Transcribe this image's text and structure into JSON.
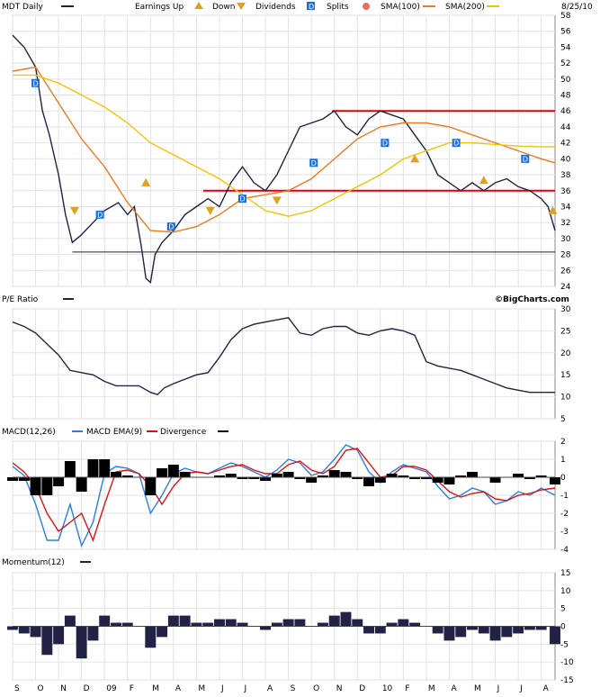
{
  "header": {
    "symbol_label": "MDT Daily",
    "date": "8/25/10",
    "legend": {
      "earnings_up": "Earnings Up",
      "down": "Down",
      "dividends": "Dividends",
      "splits": "Splits",
      "sma100": "SMA(100)",
      "sma200": "SMA(200)"
    },
    "source": "©BigCharts.com"
  },
  "colors": {
    "price": "#222244",
    "sma100": "#f07a20",
    "sma200": "#f5c400",
    "resistance_line": "#e00000",
    "macd": "#2a7fe0",
    "macd_ema": "#dd1111",
    "divergence": "#000000",
    "momentum": "#222244",
    "dividend_marker": "#1a6fe0",
    "earnings_marker": "#e0a020"
  },
  "chart_data": [
    {
      "type": "line",
      "title": "MDT Daily",
      "x_labels": [
        "S",
        "O",
        "N",
        "D",
        "09",
        "F",
        "M",
        "A",
        "M",
        "J",
        "J",
        "A",
        "S",
        "O",
        "N",
        "D",
        "10",
        "F",
        "M",
        "A",
        "M",
        "J",
        "J",
        "A"
      ],
      "ylim": [
        24,
        58
      ],
      "y_ticks": [
        24,
        26,
        28,
        30,
        32,
        34,
        36,
        38,
        40,
        42,
        44,
        46,
        48,
        50,
        52,
        54,
        56,
        58
      ],
      "grid": true,
      "series": [
        {
          "name": "MDT Daily",
          "key": "price",
          "x_index": [
            0,
            0.5,
            1,
            1.3,
            1.6,
            2,
            2.3,
            2.6,
            3,
            3.5,
            4,
            4.3,
            4.6,
            5,
            5.3,
            5.6,
            5.8,
            6,
            6.2,
            6.5,
            7,
            7.5,
            8,
            8.5,
            9,
            9.5,
            10,
            10.5,
            11,
            11.5,
            12,
            12.5,
            13,
            13.5,
            14,
            14.5,
            15,
            15.5,
            16,
            16.5,
            17,
            17.5,
            18,
            18.5,
            19,
            19.5,
            20,
            20.5,
            21,
            21.5,
            22,
            22.5,
            23,
            23.3,
            23.6
          ],
          "values": [
            55.5,
            54,
            51.5,
            46,
            43,
            38,
            33,
            29.5,
            30.5,
            32,
            33.5,
            34,
            34.5,
            33,
            34,
            29,
            25,
            24.5,
            28,
            29.5,
            31,
            33,
            34,
            35,
            34,
            37,
            39,
            37,
            36,
            38,
            41,
            44,
            44.5,
            45,
            46,
            44,
            43,
            45,
            46,
            45.5,
            45,
            43,
            41,
            38,
            37,
            36,
            37,
            36,
            37,
            37.5,
            36.5,
            36,
            35,
            34,
            31
          ]
        },
        {
          "name": "SMA(100)",
          "key": "sma100",
          "x_index": [
            0,
            1,
            2,
            3,
            4,
            5,
            6,
            7,
            8,
            9,
            10,
            11,
            12,
            13,
            14,
            15,
            16,
            17,
            18,
            19,
            20,
            21,
            22,
            23,
            23.6
          ],
          "values": [
            51,
            51.5,
            47,
            42.5,
            39,
            34.5,
            31,
            30.8,
            31.5,
            33,
            35,
            35.5,
            36,
            37.5,
            40,
            42.5,
            44,
            44.5,
            44.5,
            44,
            43,
            42,
            41,
            40,
            39.5
          ]
        },
        {
          "name": "SMA(200)",
          "key": "sma200",
          "x_index": [
            0,
            1,
            2,
            3,
            4,
            5,
            6,
            7,
            8,
            9,
            10,
            11,
            12,
            13,
            14,
            15,
            16,
            17,
            18,
            19,
            20,
            21,
            22,
            23,
            23.6
          ],
          "values": [
            50.5,
            50.5,
            49.5,
            48,
            46.5,
            44.5,
            42,
            40.5,
            39,
            37.5,
            35.5,
            33.5,
            32.8,
            33.5,
            35,
            36.5,
            38,
            40,
            41,
            42,
            42,
            41.8,
            41.6,
            41.5,
            41.5
          ]
        }
      ],
      "reference_lines": [
        {
          "value": 46,
          "from_index": 13.9,
          "to_index": 23.6,
          "key": "resistance_line"
        },
        {
          "value": 36,
          "from_index": 8.3,
          "to_index": 23.6,
          "key": "resistance_line"
        },
        {
          "value": 28.3,
          "from_index": 2.6,
          "to_index": 23.6,
          "key": "price"
        }
      ],
      "dividend_markers": [
        {
          "x_index": 1.0,
          "value": 49.5,
          "label": "D"
        },
        {
          "x_index": 3.8,
          "value": 33.0,
          "label": "D"
        },
        {
          "x_index": 6.9,
          "value": 31.5,
          "label": "D"
        },
        {
          "x_index": 10.0,
          "value": 35.0,
          "label": "D"
        },
        {
          "x_index": 13.1,
          "value": 39.5,
          "label": "D"
        },
        {
          "x_index": 16.2,
          "value": 42.0,
          "label": "D"
        },
        {
          "x_index": 19.3,
          "value": 42.0,
          "label": "D"
        },
        {
          "x_index": 22.3,
          "value": 40.0,
          "label": "D"
        }
      ],
      "earnings_markers": [
        {
          "x_index": 2.7,
          "value": 33.5,
          "dir": "down"
        },
        {
          "x_index": 5.8,
          "value": 37.0,
          "dir": "up"
        },
        {
          "x_index": 8.6,
          "value": 33.5,
          "dir": "down"
        },
        {
          "x_index": 11.5,
          "value": 34.8,
          "dir": "down"
        },
        {
          "x_index": 17.5,
          "value": 40.0,
          "dir": "up"
        },
        {
          "x_index": 20.5,
          "value": 37.3,
          "dir": "up"
        },
        {
          "x_index": 23.5,
          "value": 33.5,
          "dir": "up"
        }
      ]
    },
    {
      "type": "line",
      "title": "P/E Ratio",
      "ylim": [
        5,
        30
      ],
      "y_ticks": [
        5,
        10,
        15,
        20,
        25,
        30
      ],
      "grid": true,
      "series": [
        {
          "name": "P/E Ratio",
          "key": "price",
          "x_index": [
            0,
            0.5,
            1,
            1.5,
            2,
            2.5,
            3,
            3.5,
            4,
            4.5,
            5,
            5.5,
            6,
            6.3,
            6.6,
            7,
            7.5,
            8,
            8.5,
            9,
            9.5,
            10,
            10.5,
            11,
            11.5,
            12,
            12.5,
            13,
            13.5,
            14,
            14.5,
            15,
            15.5,
            16,
            16.5,
            17,
            17.5,
            18,
            18.5,
            19,
            19.5,
            20,
            20.5,
            21,
            21.5,
            22,
            22.5,
            23,
            23.6
          ],
          "values": [
            27,
            26,
            24.5,
            22,
            19.5,
            16,
            15.5,
            15,
            13.5,
            12.5,
            12.5,
            12.5,
            11,
            10.5,
            12,
            13,
            14,
            15,
            15.5,
            19,
            23,
            25.5,
            26.5,
            27,
            27.5,
            28,
            24.5,
            24,
            25.5,
            26,
            26,
            24.5,
            24,
            25,
            25.5,
            25,
            24,
            18,
            17,
            16.5,
            16,
            15,
            14,
            13,
            12,
            11.5,
            11,
            11,
            11
          ]
        }
      ]
    },
    {
      "type": "line",
      "title": "MACD(12,26)",
      "ylim": [
        -4,
        2
      ],
      "y_ticks": [
        -4,
        -3,
        -2,
        -1,
        0,
        1,
        2
      ],
      "grid": true,
      "series": [
        {
          "name": "MACD(12,26)",
          "key": "macd",
          "x_index": [
            0,
            0.5,
            1,
            1.5,
            2,
            2.5,
            3,
            3.5,
            4,
            4.5,
            5,
            5.5,
            6,
            6.5,
            7,
            7.5,
            8,
            8.5,
            9,
            9.5,
            10,
            10.5,
            11,
            11.5,
            12,
            12.5,
            13,
            13.5,
            14,
            14.5,
            15,
            15.5,
            16,
            16.5,
            17,
            17.5,
            18,
            18.5,
            19,
            19.5,
            20,
            20.5,
            21,
            21.5,
            22,
            22.5,
            23,
            23.6
          ],
          "values": [
            0.6,
            0.1,
            -1.5,
            -3.5,
            -3.5,
            -1.5,
            -3.8,
            -2.5,
            0.2,
            0.6,
            0.5,
            0.2,
            -2.0,
            -1.0,
            0.2,
            0.5,
            0.3,
            0.2,
            0.5,
            0.8,
            0.6,
            0.3,
            0,
            0.4,
            1.0,
            0.8,
            0.1,
            0.3,
            1.0,
            1.8,
            1.5,
            0.3,
            -0.3,
            0.3,
            0.7,
            0.5,
            0.3,
            -0.5,
            -1.2,
            -1.0,
            -0.6,
            -0.8,
            -1.5,
            -1.3,
            -0.8,
            -1.0,
            -0.6,
            -1.0
          ]
        },
        {
          "name": "MACD EMA(9)",
          "key": "macd_ema",
          "x_index": [
            0,
            0.5,
            1,
            1.5,
            2,
            2.5,
            3,
            3.5,
            4,
            4.5,
            5,
            5.5,
            6,
            6.5,
            7,
            7.5,
            8,
            8.5,
            9,
            9.5,
            10,
            10.5,
            11,
            11.5,
            12,
            12.5,
            13,
            13.5,
            14,
            14.5,
            15,
            15.5,
            16,
            16.5,
            17,
            17.5,
            18,
            18.5,
            19,
            19.5,
            20,
            20.5,
            21,
            21.5,
            22,
            22.5,
            23,
            23.6
          ],
          "values": [
            0.8,
            0.3,
            -0.5,
            -2.0,
            -3.0,
            -2.5,
            -2.0,
            -3.5,
            -1.5,
            0.3,
            0.4,
            0.2,
            -0.5,
            -1.5,
            -0.5,
            0.2,
            0.3,
            0.2,
            0.4,
            0.6,
            0.7,
            0.4,
            0.2,
            0.2,
            0.7,
            0.9,
            0.4,
            0.2,
            0.6,
            1.5,
            1.6,
            0.8,
            0,
            0.1,
            0.6,
            0.6,
            0.4,
            -0.2,
            -0.8,
            -1.1,
            -0.9,
            -0.8,
            -1.2,
            -1.3,
            -1.0,
            -0.9,
            -0.7,
            -0.6
          ]
        },
        {
          "name": "Divergence",
          "key": "divergence",
          "type": "bar",
          "x_index": [
            0,
            0.5,
            1,
            1.5,
            2,
            2.5,
            3,
            3.5,
            4,
            4.5,
            5,
            5.5,
            6,
            6.5,
            7,
            7.5,
            8,
            8.5,
            9,
            9.5,
            10,
            10.5,
            11,
            11.5,
            12,
            12.5,
            13,
            13.5,
            14,
            14.5,
            15,
            15.5,
            16,
            16.5,
            17,
            17.5,
            18,
            18.5,
            19,
            19.5,
            20,
            20.5,
            21,
            21.5,
            22,
            22.5,
            23,
            23.6
          ],
          "values": [
            -0.2,
            -0.2,
            -1.0,
            -1.0,
            -0.5,
            0.9,
            -0.8,
            1.0,
            1.0,
            0.3,
            0.1,
            0,
            -1.0,
            0.5,
            0.7,
            0.3,
            0,
            0,
            0.1,
            0.2,
            -0.1,
            -0.1,
            -0.2,
            0.2,
            0.3,
            -0.1,
            -0.3,
            0.1,
            0.4,
            0.3,
            -0.1,
            -0.5,
            -0.3,
            0.2,
            0.1,
            -0.1,
            -0.1,
            -0.3,
            -0.4,
            0.1,
            0.3,
            0,
            -0.3,
            0,
            0.2,
            -0.1,
            0.1,
            -0.4
          ]
        }
      ]
    },
    {
      "type": "bar",
      "title": "Momentum(12)",
      "ylim": [
        -15,
        15
      ],
      "y_ticks": [
        -15,
        -10,
        -5,
        0,
        5,
        10,
        15
      ],
      "grid": true,
      "series": [
        {
          "name": "Momentum(12)",
          "key": "momentum",
          "x_index": [
            0,
            0.5,
            1,
            1.5,
            2,
            2.5,
            3,
            3.5,
            4,
            4.5,
            5,
            5.5,
            6,
            6.5,
            7,
            7.5,
            8,
            8.5,
            9,
            9.5,
            10,
            10.5,
            11,
            11.5,
            12,
            12.5,
            13,
            13.5,
            14,
            14.5,
            15,
            15.5,
            16,
            16.5,
            17,
            17.5,
            18,
            18.5,
            19,
            19.5,
            20,
            20.5,
            21,
            21.5,
            22,
            22.5,
            23,
            23.6
          ],
          "values": [
            -1,
            -2,
            -3,
            -8,
            -5,
            3,
            -9,
            -4,
            3,
            1,
            1,
            0,
            -6,
            -3,
            3,
            3,
            1,
            1,
            2,
            2,
            1,
            0,
            -1,
            1,
            2,
            2,
            0,
            1,
            3,
            4,
            2,
            -2,
            -2,
            1,
            2,
            1,
            0,
            -2,
            -4,
            -3,
            -1,
            -2,
            -4,
            -3,
            -2,
            -1,
            -1,
            -5
          ]
        }
      ]
    }
  ]
}
